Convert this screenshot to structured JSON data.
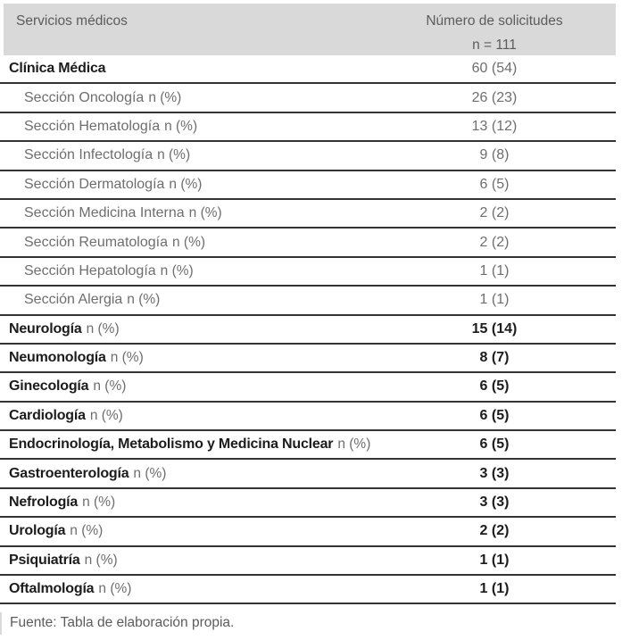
{
  "colors": {
    "header_bg": "#d9d9d9",
    "header_text": "#5c5c5c",
    "row_border": "#333333",
    "emphasis_text": "#1c1c1c",
    "muted_text": "#6e6e6e"
  },
  "table": {
    "header": {
      "col_services": "Servicios médicos",
      "col_requests_line1": "Número de solicitudes",
      "col_requests_line2": "n = 111"
    },
    "rows": [
      {
        "label": "Clínica Médica",
        "suffix": "",
        "value": "60 (54)",
        "emphasis": true,
        "indent": false,
        "value_emphasis": false
      },
      {
        "label": "Sección Oncología",
        "suffix": "n (%)",
        "value": "26 (23)",
        "emphasis": false,
        "indent": true,
        "value_emphasis": false
      },
      {
        "label": "Sección Hematología",
        "suffix": "n (%)",
        "value": "13 (12)",
        "emphasis": false,
        "indent": true,
        "value_emphasis": false
      },
      {
        "label": "Sección Infectología",
        "suffix": "n (%)",
        "value": "9 (8)",
        "emphasis": false,
        "indent": true,
        "value_emphasis": false
      },
      {
        "label": "Sección Dermatología",
        "suffix": "n (%)",
        "value": "6 (5)",
        "emphasis": false,
        "indent": true,
        "value_emphasis": false
      },
      {
        "label": "Sección Medicina Interna",
        "suffix": "n (%)",
        "value": "2 (2)",
        "emphasis": false,
        "indent": true,
        "value_emphasis": false
      },
      {
        "label": "Sección Reumatología",
        "suffix": "n (%)",
        "value": "2 (2)",
        "emphasis": false,
        "indent": true,
        "value_emphasis": false
      },
      {
        "label": "Sección Hepatología",
        "suffix": "n (%)",
        "value": "1 (1)",
        "emphasis": false,
        "indent": true,
        "value_emphasis": false
      },
      {
        "label": "Sección Alergia",
        "suffix": "n (%)",
        "value": "1 (1)",
        "emphasis": false,
        "indent": true,
        "value_emphasis": false
      },
      {
        "label": "Neurología",
        "suffix": "n (%)",
        "value": "15 (14)",
        "emphasis": true,
        "indent": false,
        "value_emphasis": true
      },
      {
        "label": "Neumonología",
        "suffix": "n (%)",
        "value": "8 (7)",
        "emphasis": true,
        "indent": false,
        "value_emphasis": true
      },
      {
        "label": "Ginecología",
        "suffix": "n (%)",
        "value": "6 (5)",
        "emphasis": true,
        "indent": false,
        "value_emphasis": true
      },
      {
        "label": "Cardiología",
        "suffix": "n (%)",
        "value": "6 (5)",
        "emphasis": true,
        "indent": false,
        "value_emphasis": true
      },
      {
        "label": "Endocrinología, Metabolismo y Medicina Nuclear",
        "suffix": "n (%)",
        "value": "6 (5)",
        "emphasis": true,
        "indent": false,
        "value_emphasis": true
      },
      {
        "label": "Gastroenterología",
        "suffix": "n (%)",
        "value": "3 (3)",
        "emphasis": true,
        "indent": false,
        "value_emphasis": true
      },
      {
        "label": "Nefrología",
        "suffix": "n (%)",
        "value": "3 (3)",
        "emphasis": true,
        "indent": false,
        "value_emphasis": true
      },
      {
        "label": "Urología",
        "suffix": "n (%)",
        "value": "2 (2)",
        "emphasis": true,
        "indent": false,
        "value_emphasis": true
      },
      {
        "label": "Psiquiatría",
        "suffix": "n (%)",
        "value": "1 (1)",
        "emphasis": true,
        "indent": false,
        "value_emphasis": true
      },
      {
        "label": "Oftalmología",
        "suffix": "n (%)",
        "value": "1 (1)",
        "emphasis": true,
        "indent": false,
        "value_emphasis": true
      }
    ],
    "footer": "Fuente: Tabla de elaboración propia."
  }
}
